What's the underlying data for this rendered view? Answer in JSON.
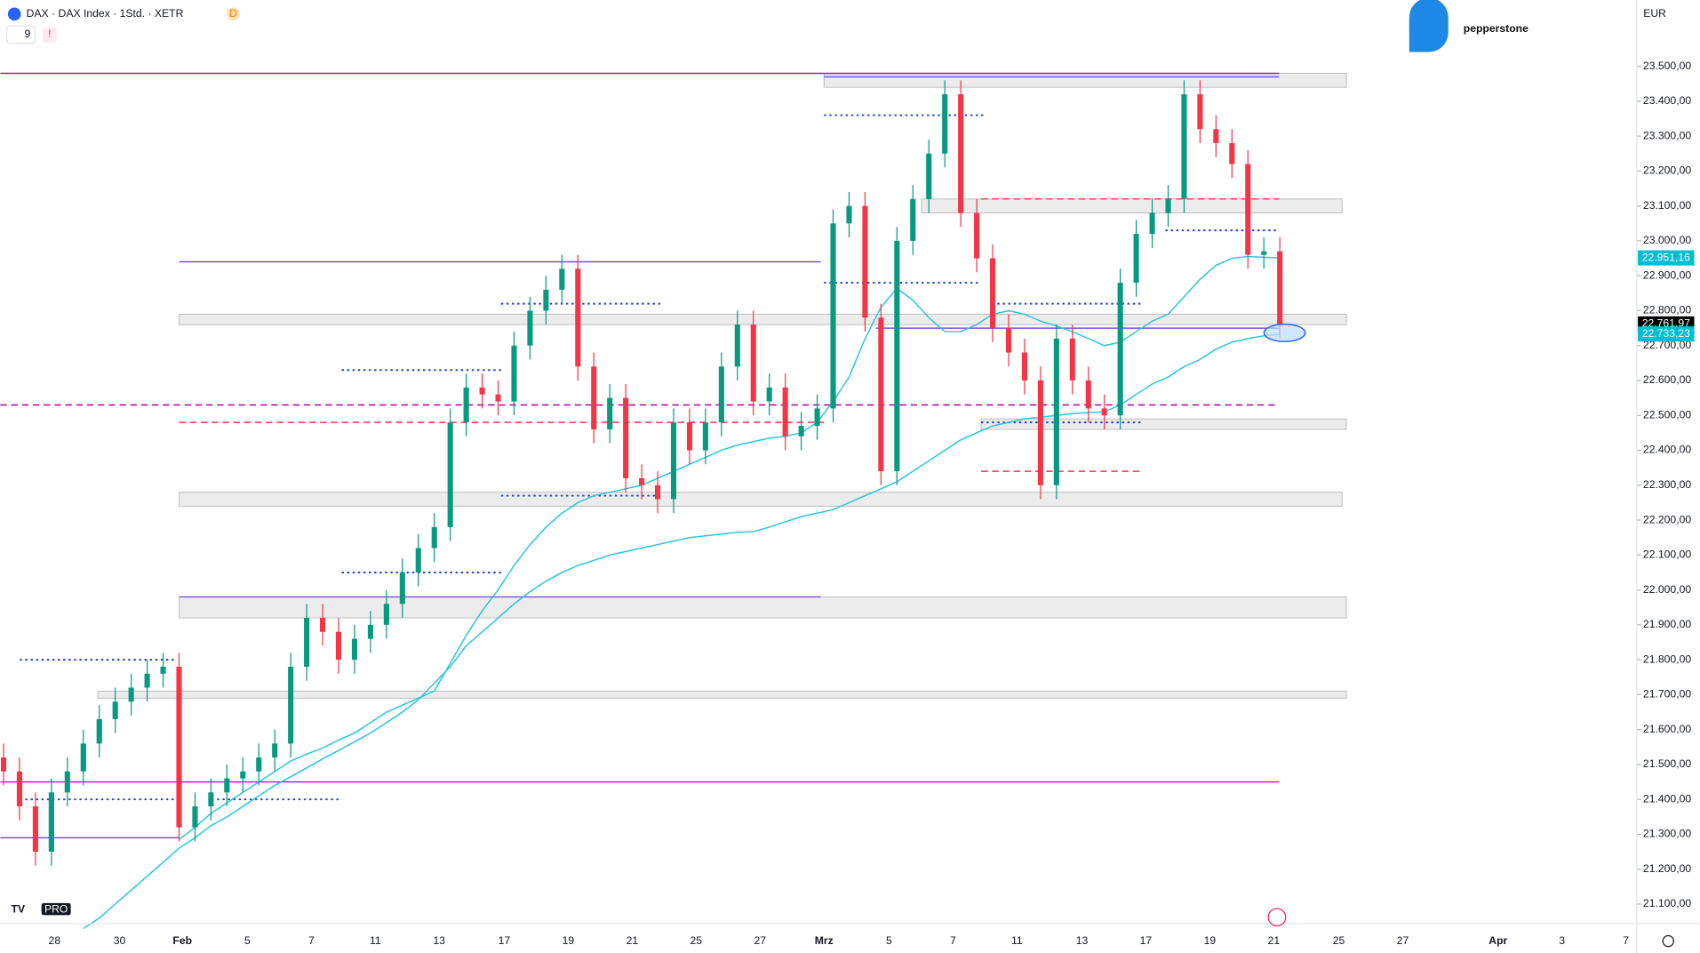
{
  "header": {
    "symbol": "DAX · DAX Index · 1Std. · XETR",
    "badge": "D",
    "indicator_count": "9",
    "alert": "!",
    "brand": "pepperstone",
    "currency": "EUR",
    "logo_badge": "PRO"
  },
  "chart_data": {
    "type": "candlestick",
    "x_labels": [
      "28",
      "30",
      "Feb",
      "5",
      "7",
      "11",
      "13",
      "17",
      "19",
      "21",
      "25",
      "27",
      "Mrz",
      "5",
      "7",
      "11",
      "13",
      "17",
      "19",
      "21",
      "25",
      "27",
      "Apr",
      "3",
      "7"
    ],
    "open": [
      21520,
      21480,
      21380,
      21250,
      21420,
      21480,
      21560,
      21630,
      21680,
      21720,
      21760,
      21780,
      21320,
      21380,
      21420,
      21460,
      21480,
      21520,
      21560,
      21780,
      21920,
      21880,
      21800,
      21860,
      21900,
      21960,
      22050,
      22120,
      22180,
      22480,
      22580,
      22560,
      22540,
      22700,
      22800,
      22860,
      22920,
      22640,
      22460,
      22550,
      22320,
      22300,
      22260,
      22480,
      22400,
      22480,
      22640,
      22760,
      22540,
      22580,
      22440,
      22470,
      22520,
      23050,
      23100,
      22780,
      22340,
      23000,
      23120,
      23250,
      23420,
      23080,
      22950,
      22750,
      22680,
      22600,
      22300,
      22720,
      22600,
      22520,
      22500,
      22880,
      23020,
      23080,
      23120,
      23420,
      23320,
      23280,
      23220,
      22960,
      22970
    ],
    "high": [
      21560,
      21520,
      21420,
      21460,
      21520,
      21600,
      21670,
      21720,
      21760,
      21800,
      21820,
      21820,
      21420,
      21460,
      21500,
      21520,
      21560,
      21600,
      21820,
      21960,
      21960,
      21920,
      21900,
      21940,
      22000,
      22090,
      22160,
      22220,
      22520,
      22620,
      22620,
      22600,
      22740,
      22840,
      22900,
      22960,
      22960,
      22680,
      22590,
      22590,
      22360,
      22340,
      22520,
      22520,
      22520,
      22680,
      22800,
      22800,
      22620,
      22620,
      22510,
      22560,
      23090,
      23140,
      23140,
      22820,
      23040,
      23160,
      23290,
      23460,
      23460,
      23120,
      22990,
      22790,
      22720,
      22640,
      22760,
      22760,
      22640,
      22560,
      22920,
      23060,
      23120,
      23160,
      23460,
      23460,
      23360,
      23320,
      23260,
      23010,
      23010
    ],
    "low": [
      21440,
      21340,
      21210,
      21210,
      21380,
      21440,
      21520,
      21590,
      21640,
      21680,
      21720,
      21280,
      21280,
      21340,
      21380,
      21420,
      21440,
      21480,
      21520,
      21740,
      21840,
      21760,
      21760,
      21820,
      21860,
      21920,
      22010,
      22080,
      22140,
      22440,
      22520,
      22500,
      22500,
      22660,
      22760,
      22820,
      22600,
      22420,
      22420,
      22280,
      22260,
      22220,
      22220,
      22360,
      22360,
      22440,
      22600,
      22500,
      22500,
      22400,
      22400,
      22430,
      22480,
      23010,
      22740,
      22300,
      22300,
      22960,
      23080,
      23210,
      23040,
      22910,
      22710,
      22640,
      22560,
      22260,
      22260,
      22560,
      22480,
      22460,
      22460,
      22840,
      22980,
      23040,
      23080,
      23280,
      23240,
      23180,
      22920,
      22920,
      22722
    ],
    "close": [
      21480,
      21380,
      21250,
      21420,
      21480,
      21560,
      21630,
      21680,
      21720,
      21760,
      21780,
      21320,
      21380,
      21420,
      21460,
      21480,
      21520,
      21560,
      21780,
      21920,
      21880,
      21800,
      21860,
      21900,
      21960,
      22050,
      22120,
      22180,
      22480,
      22580,
      22560,
      22540,
      22700,
      22800,
      22860,
      22920,
      22640,
      22460,
      22550,
      22320,
      22300,
      22260,
      22480,
      22400,
      22480,
      22640,
      22760,
      22540,
      22580,
      22440,
      22470,
      22520,
      23050,
      23100,
      22780,
      22340,
      23000,
      23120,
      23250,
      23420,
      23080,
      22950,
      22750,
      22680,
      22600,
      22300,
      22720,
      22600,
      22520,
      22500,
      22880,
      23020,
      23080,
      23120,
      23420,
      23320,
      23280,
      23220,
      22960,
      22970,
      22762
    ],
    "up_color": "#089981",
    "down_color": "#f23645",
    "moving_averages": [
      {
        "color": "#26c6da",
        "values": [
          null,
          null,
          null,
          null,
          null,
          null,
          null,
          null,
          null,
          null,
          null,
          21285,
          21320,
          21360,
          21390,
          21420,
          21450,
          21480,
          21510,
          21530,
          21547,
          21570,
          21590,
          21620,
          21650,
          21670,
          21690,
          21710,
          21790,
          21870,
          21940,
          22000,
          22070,
          22130,
          22180,
          22220,
          22250,
          22270,
          22280,
          22290,
          22300,
          22320,
          22340,
          22360,
          22380,
          22400,
          22415,
          22425,
          22435,
          22440,
          22450,
          22480,
          22540,
          22610,
          22720,
          22810,
          22864,
          22830,
          22780,
          22740,
          22740,
          22760,
          22790,
          22800,
          22790,
          22770,
          22756,
          22740,
          22720,
          22700,
          22710,
          22740,
          22770,
          22790,
          22840,
          22890,
          22930,
          22950,
          22955,
          22953,
          22951.16
        ]
      },
      {
        "color": "#26c6da",
        "values": [
          null,
          null,
          null,
          null,
          null,
          21030,
          21060,
          21100,
          21140,
          21180,
          21220,
          21260,
          21290,
          21325,
          21350,
          21380,
          21410,
          21440,
          21465,
          21490,
          21516,
          21540,
          21565,
          21590,
          21620,
          21650,
          21685,
          21733,
          21780,
          21840,
          21880,
          21920,
          21960,
          21995,
          22025,
          22050,
          22070,
          22085,
          22100,
          22110,
          22120,
          22130,
          22140,
          22150,
          22155,
          22160,
          22165,
          22167,
          22180,
          22195,
          22210,
          22220,
          22230,
          22250,
          22270,
          22290,
          22310,
          22340,
          22370,
          22400,
          22430,
          22450,
          22470,
          22480,
          22490,
          22495,
          22500,
          22505,
          22508,
          22510,
          22530,
          22560,
          22590,
          22610,
          22640,
          22660,
          22690,
          22710,
          22720,
          22728,
          22733.23
        ]
      }
    ],
    "levels": [
      {
        "value": 23480,
        "color": "#d500d5",
        "style": "solid"
      },
      {
        "value": 21450,
        "color": "#d500d5",
        "style": "solid"
      },
      {
        "value": 22530,
        "color": "#b0009c",
        "style": "dashed"
      },
      {
        "value": 21290,
        "color": "#7b4fd6",
        "style": "solid"
      },
      {
        "value": 22940,
        "color": "#7b4fd6",
        "style": "solid"
      },
      {
        "value": 21980,
        "color": "#7b4fd6",
        "style": "solid"
      },
      {
        "value": 22750,
        "color": "#7b4fd6",
        "style": "solid"
      },
      {
        "value": 23470,
        "color": "#7b4fd6",
        "style": "solid"
      },
      {
        "value": 23120,
        "color": "#f23645",
        "style": "dashed"
      },
      {
        "value": 23030,
        "color": "#1e3fd4",
        "style": "dotted"
      },
      {
        "value": 22820,
        "color": "#1e3fd4",
        "style": "dotted"
      },
      {
        "value": 22480,
        "color": "#f23645",
        "style": "dashed"
      },
      {
        "value": 22480,
        "color": "#1e3fd4",
        "style": "dotted"
      },
      {
        "value": 22630,
        "color": "#1e3fd4",
        "style": "dotted"
      },
      {
        "value": 22820,
        "color": "#1e3fd4",
        "style": "dotted"
      },
      {
        "value": 22270,
        "color": "#1e3fd4",
        "style": "dotted"
      },
      {
        "value": 21800,
        "color": "#1e3fd4",
        "style": "dotted"
      },
      {
        "value": 21400,
        "color": "#1e3fd4",
        "style": "dotted"
      },
      {
        "value": 21400,
        "color": "#1e3fd4",
        "style": "dotted"
      },
      {
        "value": 23360,
        "color": "#1e3fd4",
        "style": "dotted"
      },
      {
        "value": 22880,
        "color": "#1e3fd4",
        "style": "dotted"
      },
      {
        "value": 22050,
        "color": "#1e3fd4",
        "style": "dotted"
      },
      {
        "value": 22340,
        "color": "#f23645",
        "style": "dashed"
      }
    ],
    "zones": [
      {
        "low": 23440,
        "high": 23480
      },
      {
        "low": 23080,
        "high": 23120
      },
      {
        "low": 22760,
        "high": 22790
      },
      {
        "low": 22460,
        "high": 22490
      },
      {
        "low": 22240,
        "high": 22280
      },
      {
        "low": 21920,
        "high": 21980
      },
      {
        "low": 21690,
        "high": 21710
      }
    ],
    "price_labels": [
      {
        "value": 22951.16,
        "label": "22.951,16",
        "color": "#00bcd4"
      },
      {
        "value": 22761.97,
        "label": "22.761,97",
        "color": "#000000"
      },
      {
        "value": 22733.23,
        "label": "22.733,23",
        "color": "#00bcd4"
      }
    ],
    "ylim": [
      21050,
      23690
    ],
    "yticks": [
      {
        "value": 21100,
        "label": "21.100,00"
      },
      {
        "value": 21200,
        "label": "21.200,00"
      },
      {
        "value": 21300,
        "label": "21.300,00"
      },
      {
        "value": 21400,
        "label": "21.400,00"
      },
      {
        "value": 21500,
        "label": "21.500,00"
      },
      {
        "value": 21600,
        "label": "21.600,00"
      },
      {
        "value": 21700,
        "label": "21.700,00"
      },
      {
        "value": 21800,
        "label": "21.800,00"
      },
      {
        "value": 21900,
        "label": "21.900,00"
      },
      {
        "value": 22000,
        "label": "22.000,00"
      },
      {
        "value": 22100,
        "label": "22.100,00"
      },
      {
        "value": 22200,
        "label": "22.200,00"
      },
      {
        "value": 22300,
        "label": "22.300,00"
      },
      {
        "value": 22400,
        "label": "22.400,00"
      },
      {
        "value": 22500,
        "label": "22.500,00"
      },
      {
        "value": 22600,
        "label": "22.600,00"
      },
      {
        "value": 22700,
        "label": "22.700,00"
      },
      {
        "value": 22800,
        "label": "22.800,00"
      },
      {
        "value": 22900,
        "label": "22.900,00"
      },
      {
        "value": 23000,
        "label": "23.000,00"
      },
      {
        "value": 23100,
        "label": "23.100,00"
      },
      {
        "value": 23200,
        "label": "23.200,00"
      },
      {
        "value": 23300,
        "label": "23.300,00"
      },
      {
        "value": 23400,
        "label": "23.400,00"
      },
      {
        "value": 23500,
        "label": "23.500,00"
      }
    ]
  }
}
